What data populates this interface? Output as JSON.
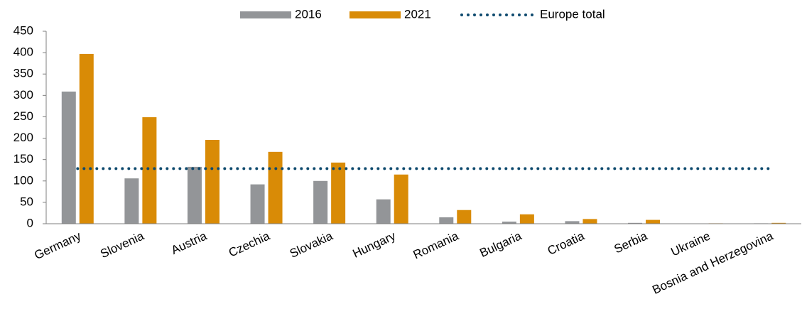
{
  "chart_data": {
    "type": "bar",
    "categories": [
      "Germany",
      "Slovenia",
      "Austria",
      "Czechia",
      "Slovakia",
      "Hungary",
      "Romania",
      "Bulgaria",
      "Croatia",
      "Serbia",
      "Ukraine",
      "Bosnia and Herzegovina"
    ],
    "series": [
      {
        "name": "2016",
        "color": "#939598",
        "values": [
          309,
          106,
          133,
          92,
          100,
          57,
          15,
          5,
          6,
          2,
          0.5,
          1
        ]
      },
      {
        "name": "2021",
        "color": "#d98b06",
        "values": [
          397,
          249,
          196,
          168,
          143,
          115,
          32,
          22,
          11,
          9,
          1,
          2
        ]
      }
    ],
    "reference_line": {
      "name": "Europe total",
      "color": "#0e4a6e",
      "value": 129
    },
    "ylim": [
      0,
      450
    ],
    "yticks": [
      0,
      50,
      100,
      150,
      200,
      250,
      300,
      350,
      400,
      450
    ],
    "legend": "top"
  }
}
